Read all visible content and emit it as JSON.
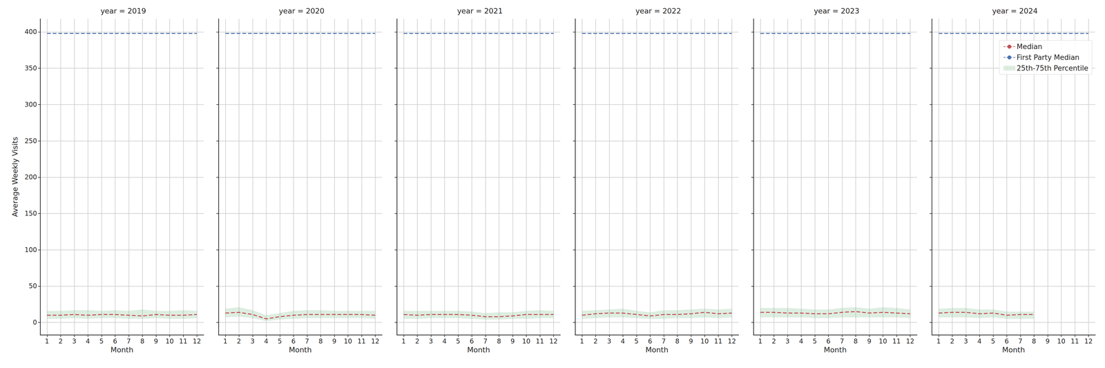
{
  "chart_data": [
    {
      "type": "line",
      "title": "year = 2019",
      "xlabel": "Month",
      "ylabel": "Average Weekly Visits",
      "x": [
        1,
        2,
        3,
        4,
        5,
        6,
        7,
        8,
        9,
        10,
        11,
        12
      ],
      "xlim": [
        0.5,
        12.5
      ],
      "xticks": [
        1,
        2,
        3,
        4,
        5,
        6,
        7,
        8,
        9,
        10,
        11,
        12
      ],
      "ylim": [
        -17,
        418
      ],
      "yticks": [
        0,
        50,
        100,
        150,
        200,
        250,
        300,
        350,
        400
      ],
      "grid": true,
      "series": [
        {
          "name": "Median",
          "color": "#c44e52",
          "line_style": "dashed",
          "values": [
            10,
            10,
            11,
            10,
            11,
            11,
            10,
            9,
            11,
            10,
            10,
            11
          ]
        },
        {
          "name": "First Party Median",
          "color": "#4c72b0",
          "line_style": "dashed",
          "values": [
            398,
            398,
            398,
            398,
            398,
            398,
            398,
            398,
            398,
            398,
            398,
            398
          ]
        },
        {
          "name": "25th-75th Percentile",
          "type": "band",
          "color": "#55a868",
          "lower": [
            5,
            5,
            6,
            5,
            6,
            6,
            5,
            5,
            6,
            5,
            5,
            6
          ],
          "upper": [
            16,
            16,
            17,
            17,
            16,
            17,
            16,
            18,
            16,
            16,
            17,
            16
          ]
        }
      ]
    },
    {
      "type": "line",
      "title": "year = 2020",
      "xlabel": "Month",
      "tick_labels": "x",
      "x": [
        1,
        2,
        3,
        4,
        5,
        6,
        7,
        8,
        9,
        10,
        11,
        12
      ],
      "xlim": [
        0.5,
        12.5
      ],
      "xticks": [
        1,
        2,
        3,
        4,
        5,
        6,
        7,
        8,
        9,
        10,
        11,
        12
      ],
      "ylim": [
        -17,
        418
      ],
      "yticks": [
        0,
        50,
        100,
        150,
        200,
        250,
        300,
        350,
        400
      ],
      "grid": true,
      "series": [
        {
          "name": "Median",
          "color": "#c44e52",
          "line_style": "dashed",
          "values": [
            13,
            14,
            11,
            5,
            8,
            10,
            11,
            11,
            11,
            11,
            11,
            10
          ]
        },
        {
          "name": "First Party Median",
          "color": "#4c72b0",
          "line_style": "dashed",
          "values": [
            398,
            398,
            398,
            398,
            398,
            398,
            398,
            398,
            398,
            398,
            398,
            398
          ]
        },
        {
          "name": "25th-75th Percentile",
          "type": "band",
          "color": "#55a868",
          "lower": [
            7,
            8,
            6,
            2,
            4,
            5,
            6,
            6,
            6,
            6,
            6,
            5
          ],
          "upper": [
            19,
            21,
            17,
            10,
            13,
            16,
            17,
            17,
            16,
            16,
            16,
            16
          ]
        }
      ]
    },
    {
      "type": "line",
      "title": "year = 2021",
      "xlabel": "Month",
      "tick_labels": "x",
      "x": [
        1,
        2,
        3,
        4,
        5,
        6,
        7,
        8,
        9,
        10,
        11,
        12
      ],
      "xlim": [
        0.5,
        12.5
      ],
      "xticks": [
        1,
        2,
        3,
        4,
        5,
        6,
        7,
        8,
        9,
        10,
        11,
        12
      ],
      "ylim": [
        -17,
        418
      ],
      "yticks": [
        0,
        50,
        100,
        150,
        200,
        250,
        300,
        350,
        400
      ],
      "grid": true,
      "series": [
        {
          "name": "Median",
          "color": "#c44e52",
          "line_style": "dashed",
          "values": [
            11,
            10,
            11,
            11,
            11,
            10,
            8,
            8,
            9,
            11,
            11,
            11
          ]
        },
        {
          "name": "First Party Median",
          "color": "#4c72b0",
          "line_style": "dashed",
          "values": [
            398,
            398,
            398,
            398,
            398,
            398,
            398,
            398,
            398,
            398,
            398,
            398
          ]
        },
        {
          "name": "25th-75th Percentile",
          "type": "band",
          "color": "#55a868",
          "lower": [
            5,
            5,
            6,
            6,
            6,
            5,
            4,
            4,
            5,
            5,
            6,
            6
          ],
          "upper": [
            16,
            16,
            16,
            16,
            16,
            15,
            13,
            14,
            14,
            16,
            17,
            16
          ]
        }
      ]
    },
    {
      "type": "line",
      "title": "year = 2022",
      "xlabel": "Month",
      "tick_labels": "x",
      "x": [
        1,
        2,
        3,
        4,
        5,
        6,
        7,
        8,
        9,
        10,
        11,
        12
      ],
      "xlim": [
        0.5,
        12.5
      ],
      "xticks": [
        1,
        2,
        3,
        4,
        5,
        6,
        7,
        8,
        9,
        10,
        11,
        12
      ],
      "ylim": [
        -17,
        418
      ],
      "yticks": [
        0,
        50,
        100,
        150,
        200,
        250,
        300,
        350,
        400
      ],
      "grid": true,
      "series": [
        {
          "name": "Median",
          "color": "#c44e52",
          "line_style": "dashed",
          "values": [
            10,
            12,
            13,
            13,
            11,
            9,
            11,
            11,
            12,
            14,
            12,
            13
          ]
        },
        {
          "name": "First Party Median",
          "color": "#4c72b0",
          "line_style": "dashed",
          "values": [
            398,
            398,
            398,
            398,
            398,
            398,
            398,
            398,
            398,
            398,
            398,
            398
          ]
        },
        {
          "name": "25th-75th Percentile",
          "type": "band",
          "color": "#55a868",
          "lower": [
            5,
            6,
            7,
            7,
            6,
            5,
            5,
            6,
            6,
            7,
            6,
            7
          ],
          "upper": [
            16,
            17,
            18,
            19,
            16,
            14,
            17,
            17,
            18,
            19,
            18,
            19
          ]
        }
      ]
    },
    {
      "type": "line",
      "title": "year = 2023",
      "xlabel": "Month",
      "tick_labels": "x",
      "x": [
        1,
        2,
        3,
        4,
        5,
        6,
        7,
        8,
        9,
        10,
        11,
        12
      ],
      "xlim": [
        0.5,
        12.5
      ],
      "xticks": [
        1,
        2,
        3,
        4,
        5,
        6,
        7,
        8,
        9,
        10,
        11,
        12
      ],
      "ylim": [
        -17,
        418
      ],
      "yticks": [
        0,
        50,
        100,
        150,
        200,
        250,
        300,
        350,
        400
      ],
      "grid": true,
      "series": [
        {
          "name": "Median",
          "color": "#c44e52",
          "line_style": "dashed",
          "values": [
            14,
            14,
            13,
            13,
            12,
            12,
            14,
            15,
            13,
            14,
            13,
            12
          ]
        },
        {
          "name": "First Party Median",
          "color": "#4c72b0",
          "line_style": "dashed",
          "values": [
            398,
            398,
            398,
            398,
            398,
            398,
            398,
            398,
            398,
            398,
            398,
            398
          ]
        },
        {
          "name": "25th-75th Percentile",
          "type": "band",
          "color": "#55a868",
          "lower": [
            7,
            7,
            7,
            7,
            6,
            6,
            7,
            7,
            7,
            7,
            7,
            6
          ],
          "upper": [
            20,
            20,
            20,
            19,
            18,
            18,
            20,
            21,
            19,
            21,
            20,
            18
          ]
        }
      ]
    },
    {
      "type": "line",
      "title": "year = 2024",
      "xlabel": "Month",
      "tick_labels": "x",
      "legend": "upper right",
      "x": [
        1,
        2,
        3,
        4,
        5,
        6,
        7,
        8,
        9,
        10,
        11,
        12
      ],
      "xlim": [
        0.5,
        12.5
      ],
      "xticks": [
        1,
        2,
        3,
        4,
        5,
        6,
        7,
        8,
        9,
        10,
        11,
        12
      ],
      "ylim": [
        -17,
        418
      ],
      "yticks": [
        0,
        50,
        100,
        150,
        200,
        250,
        300,
        350,
        400
      ],
      "grid": true,
      "series": [
        {
          "name": "Median",
          "color": "#c44e52",
          "line_style": "dashed",
          "values": [
            13,
            14,
            14,
            12,
            13,
            10,
            11,
            11,
            null,
            null,
            null,
            null
          ]
        },
        {
          "name": "First Party Median",
          "color": "#4c72b0",
          "line_style": "dashed",
          "values": [
            398,
            398,
            398,
            398,
            398,
            398,
            398,
            398,
            398,
            398,
            398,
            398
          ]
        },
        {
          "name": "25th-75th Percentile",
          "type": "band",
          "color": "#55a868",
          "lower": [
            7,
            7,
            7,
            6,
            7,
            5,
            5,
            5,
            null,
            null,
            null,
            null
          ],
          "upper": [
            19,
            20,
            20,
            18,
            18,
            15,
            15,
            15,
            null,
            null,
            null,
            null
          ]
        }
      ]
    }
  ]
}
